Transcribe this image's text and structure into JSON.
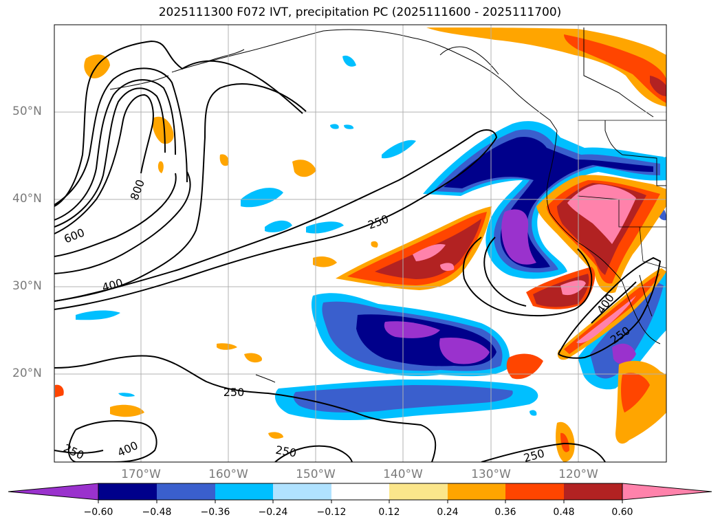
{
  "title": "2025111300 F072 IVT, precipitation PC (2025111600 - 2025111700)",
  "latitude_labels": [
    "50°N",
    "40°N",
    "30°N",
    "20°N"
  ],
  "longitude_labels": [
    "170°W",
    "160°W",
    "150°W",
    "140°W",
    "130°W",
    "120°W"
  ],
  "ivt_contour_labels": [
    "800",
    "600",
    "400",
    "250",
    "400",
    "250",
    "250",
    "400",
    "250",
    "250",
    "250"
  ],
  "colorbar": {
    "tick_labels": [
      "−0.60",
      "−0.48",
      "−0.36",
      "−0.24",
      "−0.12",
      "0.12",
      "0.24",
      "0.36",
      "0.48",
      "0.60"
    ],
    "colors": [
      "#9a32cd",
      "#00008b",
      "#3a5fcd",
      "#00bfff",
      "#b0e2ff",
      "#ffffff",
      "#fbe68b",
      "#ffa500",
      "#ff4500",
      "#b22222",
      "#ff82ab"
    ]
  }
}
